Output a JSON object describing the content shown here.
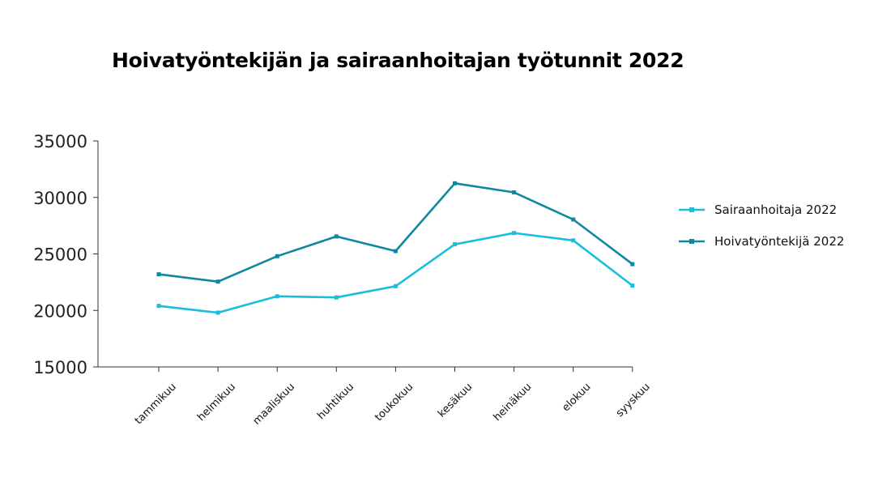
{
  "chart_data": {
    "type": "line",
    "title": "Hoivatyöntekijän ja sairaanhoitajan työtunnit 2022",
    "xlabel": "",
    "ylabel": "",
    "categories": [
      "tammikuu",
      "helmikuu",
      "maaliskuu",
      "huhtikuu",
      "toukokuu",
      "kesäkuu",
      "heinäkuu",
      "elokuu",
      "syyskuu"
    ],
    "ylim": [
      15000,
      35000
    ],
    "yticks": [
      35000,
      30000,
      25000,
      20000,
      15000
    ],
    "grid": false,
    "legend_position": "right",
    "series": [
      {
        "name": "Sairaanhoitaja 2022",
        "color": "#18bedc",
        "values": [
          20400,
          19800,
          21250,
          21150,
          22150,
          25850,
          26850,
          26200,
          22200
        ]
      },
      {
        "name": "Hoivatyöntekijä 2022",
        "color": "#0e87a3",
        "values": [
          23200,
          22550,
          24800,
          26550,
          25250,
          31250,
          30450,
          28050,
          24100
        ]
      }
    ]
  }
}
